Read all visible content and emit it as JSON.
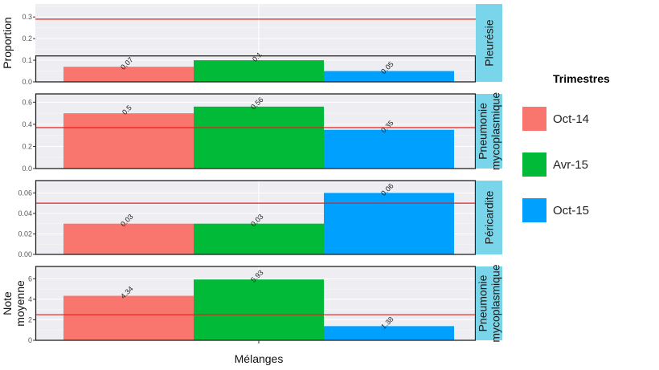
{
  "chart_data": {
    "type": "bar",
    "xlabel": "Mélanges",
    "legend": {
      "title": "Trimestres",
      "position": "right"
    },
    "series_names": [
      "Oct-14",
      "Avr-15",
      "Oct-15"
    ],
    "colors": [
      "#f8766d",
      "#00ba38",
      "#00a0ff"
    ],
    "strip_color": "#79d6ea",
    "grid": true,
    "panels": [
      {
        "strip": "Pleurésie",
        "ylabel": "Proportion",
        "ylim": [
          0,
          0.36
        ],
        "yticks": [
          "0.0",
          "0.1",
          "0.2",
          "0.3"
        ],
        "ytick_values": [
          0,
          0.1,
          0.2,
          0.3
        ],
        "values": [
          0.07,
          0.1,
          0.05
        ],
        "labels": [
          "0.07",
          "0.1",
          "0.05"
        ],
        "reference_line": 0.29,
        "highlight_box": [
          0,
          0.12
        ]
      },
      {
        "strip": "Pneumonie mycoplasmique",
        "ylabel": "",
        "ylim": [
          0,
          0.675
        ],
        "yticks": [
          "0.0",
          "0.2",
          "0.4",
          "0.6"
        ],
        "ytick_values": [
          0,
          0.2,
          0.4,
          0.6
        ],
        "values": [
          0.5,
          0.56,
          0.35
        ],
        "labels": [
          "0.5",
          "0.56",
          "0.35"
        ],
        "reference_line": 0.37,
        "highlight_box": [
          0,
          0.675
        ]
      },
      {
        "strip": "Péricardite",
        "ylabel": "",
        "ylim": [
          0,
          0.072
        ],
        "yticks": [
          "0.00",
          "0.02",
          "0.04",
          "0.06"
        ],
        "ytick_values": [
          0,
          0.02,
          0.04,
          0.06
        ],
        "values": [
          0.03,
          0.03,
          0.06
        ],
        "labels": [
          "0.03",
          "0.03",
          "0.06"
        ],
        "reference_line": 0.05,
        "highlight_box": [
          0,
          0.072
        ]
      },
      {
        "strip": "Pneumonie mycoplasmique",
        "ylabel": "Note moyenne",
        "ylim": [
          0,
          7.2
        ],
        "yticks": [
          "0",
          "2",
          "4",
          "6"
        ],
        "ytick_values": [
          0,
          2,
          4,
          6
        ],
        "values": [
          4.34,
          5.93,
          1.38
        ],
        "labels": [
          "4.34",
          "5.93",
          "1.38"
        ],
        "reference_line": 2.5,
        "highlight_box": [
          0,
          7.2
        ]
      }
    ]
  }
}
